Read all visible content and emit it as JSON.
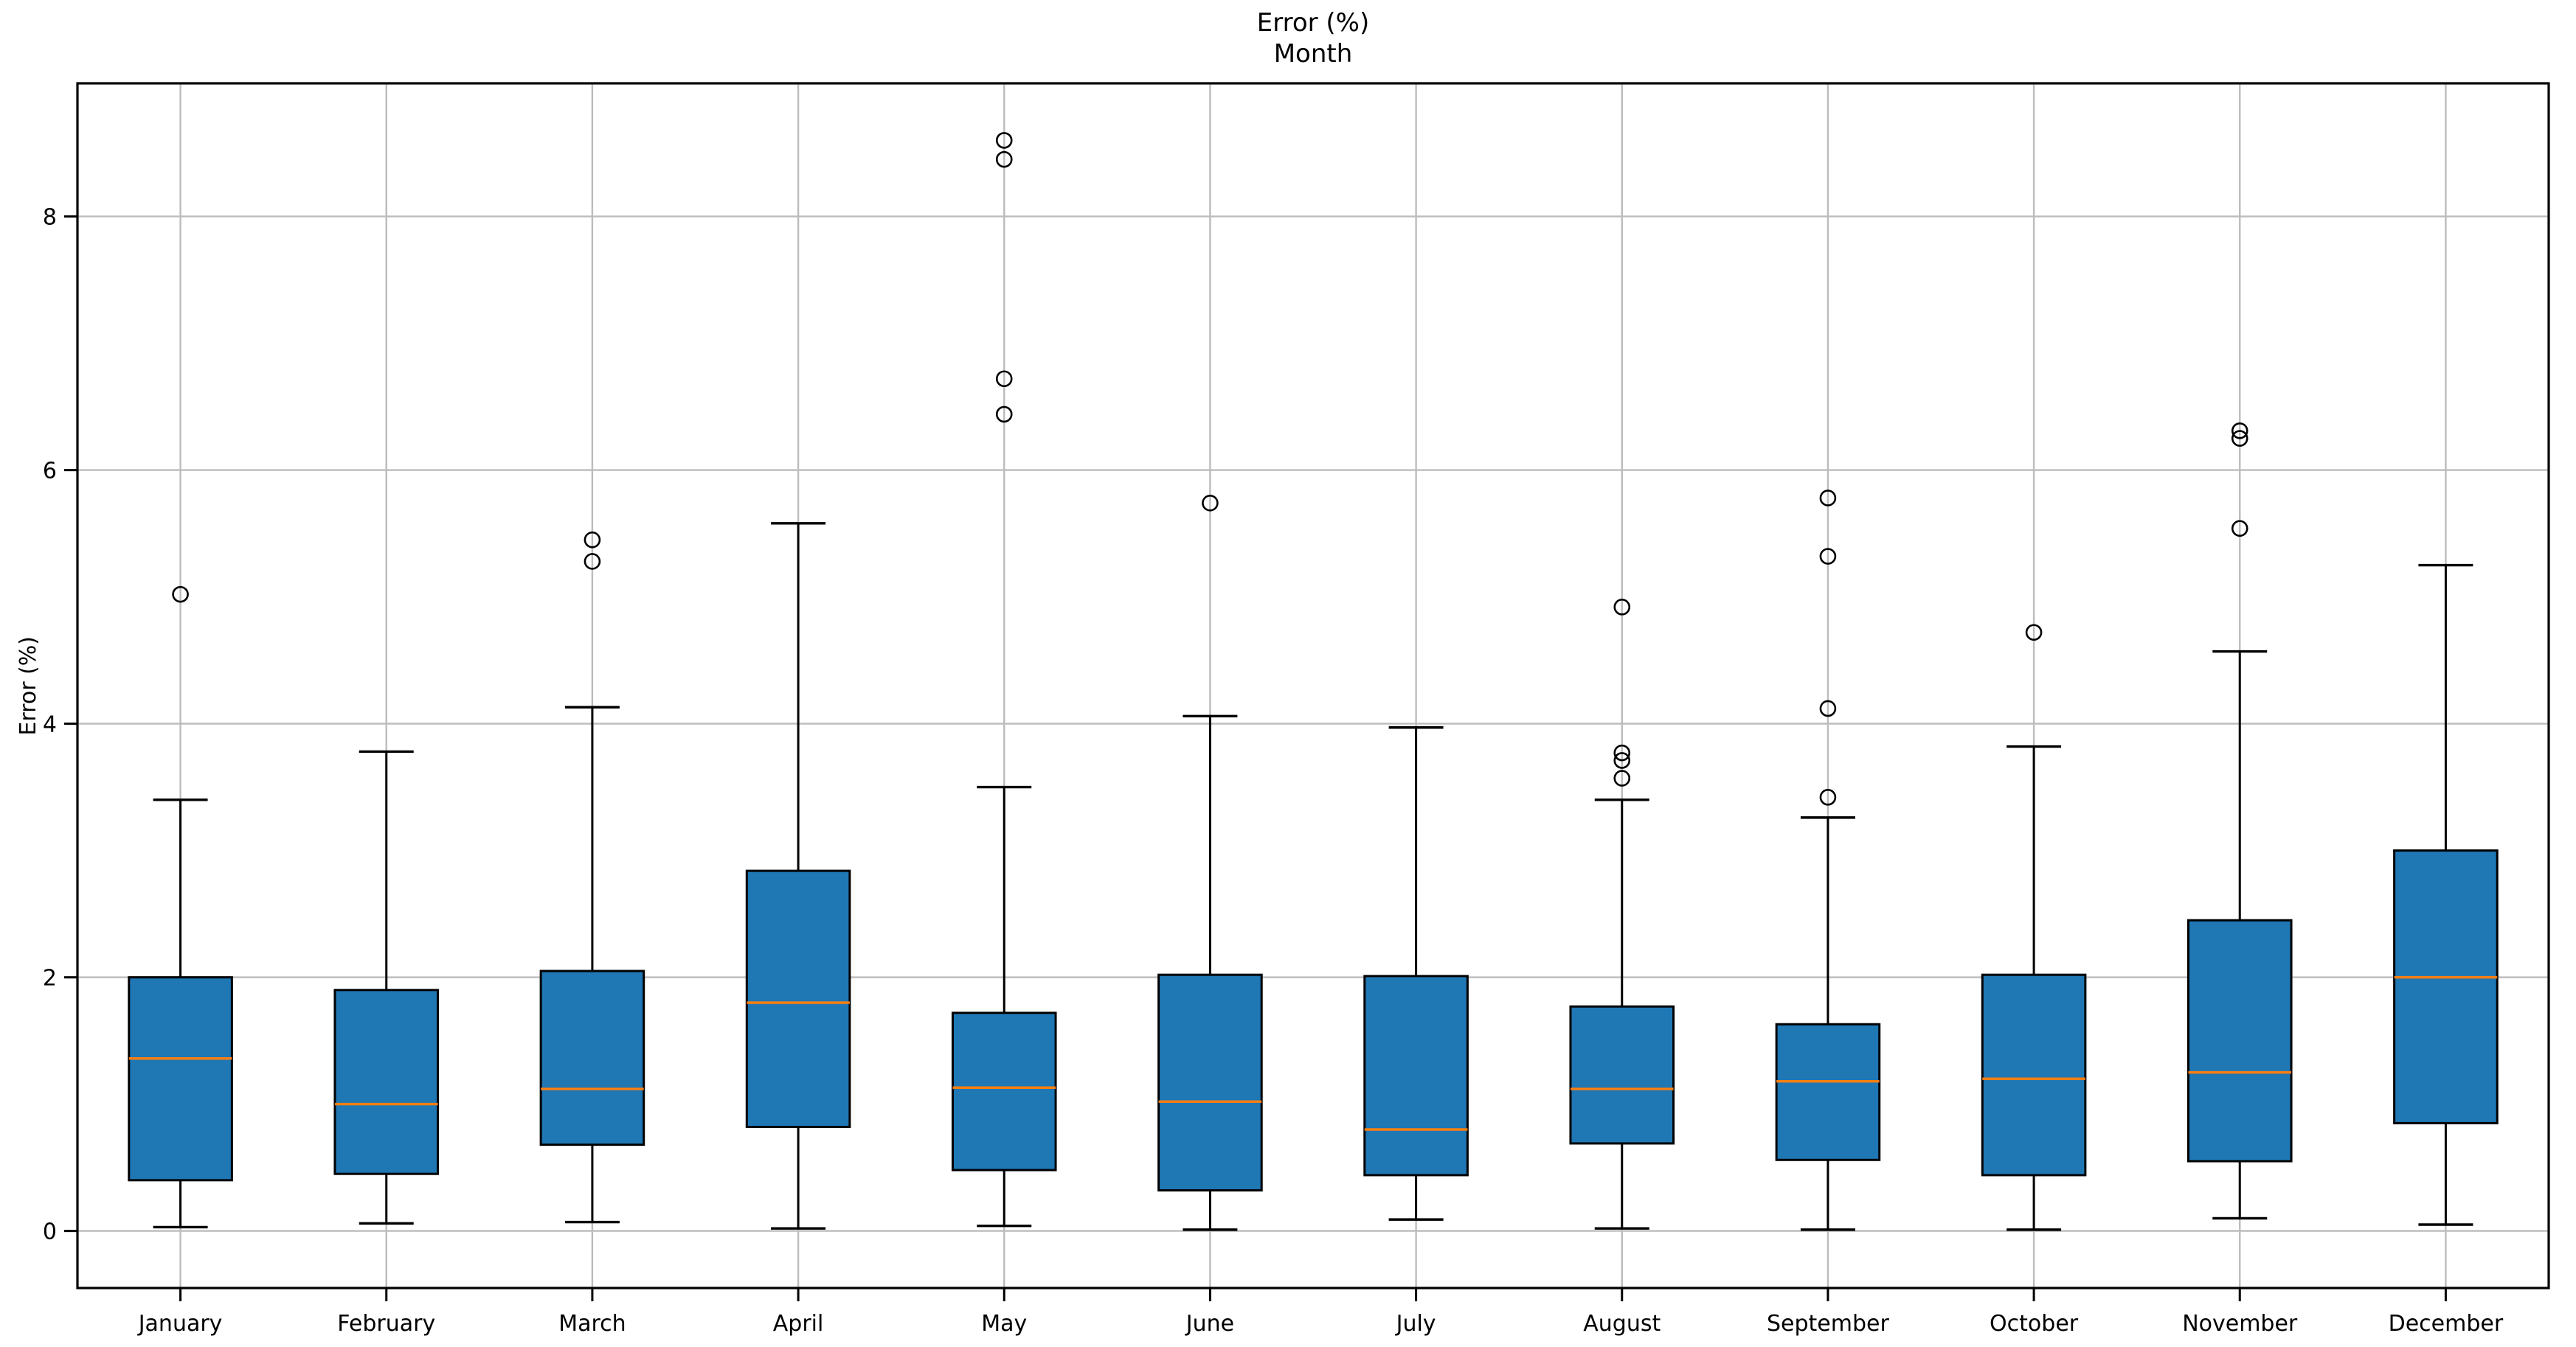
{
  "figure": {
    "title_line1": "Error (%)",
    "title_line2": "Month",
    "ylabel": "Error (%)"
  },
  "chart_data": {
    "type": "boxplot",
    "title": "Error (%)",
    "subtitle": "Month",
    "xlabel": "",
    "ylabel": "Error (%)",
    "grid": true,
    "legend": "none",
    "yticks": [
      0,
      2,
      4,
      6,
      8
    ],
    "ylim": [
      -0.45,
      9.05
    ],
    "categories": [
      "January",
      "February",
      "March",
      "April",
      "May",
      "June",
      "July",
      "August",
      "September",
      "October",
      "November",
      "December"
    ],
    "series": [
      {
        "name": "January",
        "whislo": 0.03,
        "q1": 0.4,
        "med": 1.36,
        "q3": 2.0,
        "whishi": 3.4,
        "fliers": [
          5.02
        ]
      },
      {
        "name": "February",
        "whislo": 0.06,
        "q1": 0.45,
        "med": 1.0,
        "q3": 1.9,
        "whishi": 3.78,
        "fliers": []
      },
      {
        "name": "March",
        "whislo": 0.07,
        "q1": 0.68,
        "med": 1.12,
        "q3": 2.05,
        "whishi": 4.13,
        "fliers": [
          5.28,
          5.45
        ]
      },
      {
        "name": "April",
        "whislo": 0.02,
        "q1": 0.82,
        "med": 1.8,
        "q3": 2.84,
        "whishi": 5.58,
        "fliers": []
      },
      {
        "name": "May",
        "whislo": 0.04,
        "q1": 0.48,
        "med": 1.13,
        "q3": 1.72,
        "whishi": 3.5,
        "fliers": [
          6.44,
          6.72,
          8.45,
          8.6
        ]
      },
      {
        "name": "June",
        "whislo": 0.01,
        "q1": 0.32,
        "med": 1.02,
        "q3": 2.02,
        "whishi": 4.06,
        "fliers": [
          5.74
        ]
      },
      {
        "name": "July",
        "whislo": 0.09,
        "q1": 0.44,
        "med": 0.8,
        "q3": 2.01,
        "whishi": 3.97,
        "fliers": []
      },
      {
        "name": "August",
        "whislo": 0.02,
        "q1": 0.69,
        "med": 1.12,
        "q3": 1.77,
        "whishi": 3.4,
        "fliers": [
          3.57,
          3.71,
          3.77,
          4.92
        ]
      },
      {
        "name": "September",
        "whislo": 0.01,
        "q1": 0.56,
        "med": 1.18,
        "q3": 1.63,
        "whishi": 3.26,
        "fliers": [
          3.42,
          4.12,
          5.32,
          5.78
        ]
      },
      {
        "name": "October",
        "whislo": 0.01,
        "q1": 0.44,
        "med": 1.2,
        "q3": 2.02,
        "whishi": 3.82,
        "fliers": [
          4.72
        ]
      },
      {
        "name": "November",
        "whislo": 0.1,
        "q1": 0.55,
        "med": 1.25,
        "q3": 2.45,
        "whishi": 4.57,
        "fliers": [
          5.54,
          6.25,
          6.31
        ]
      },
      {
        "name": "December",
        "whislo": 0.05,
        "q1": 0.85,
        "med": 2.0,
        "q3": 3.0,
        "whishi": 5.25,
        "fliers": []
      }
    ],
    "colors": {
      "box_fill": "#1f77b4",
      "box_edge": "#000000",
      "median": "#ff7f0e",
      "whisker": "#000000",
      "flier_edge": "#000000",
      "grid": "#bcbcbc",
      "spine": "#000000",
      "text": "#000000"
    }
  }
}
